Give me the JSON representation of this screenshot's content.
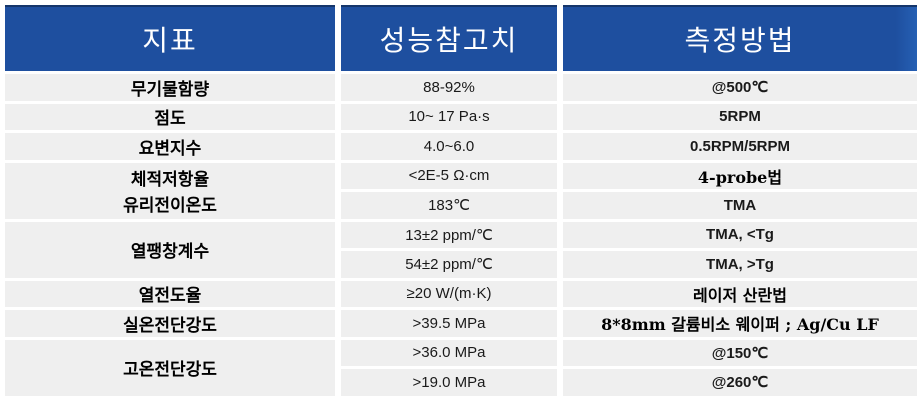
{
  "table": {
    "headers": [
      {
        "label": "지표"
      },
      {
        "label": "성능참고치"
      },
      {
        "label": "측정방법"
      }
    ],
    "rows": [
      {
        "indicator": "무기물함량",
        "value": "88-92%",
        "method": "@500℃"
      },
      {
        "indicator": "점도",
        "value": "10~ 17 Pa·s",
        "method": "5RPM"
      },
      {
        "indicator": "요변지수",
        "value": "4.0~6.0",
        "method": "0.5RPM/5RPM"
      },
      {
        "indicator": "체적저항율",
        "value": "<2E-5 Ω·cm",
        "method": "4-probe법"
      },
      {
        "indicator": "유리전이온도",
        "value": "183℃",
        "method": "TMA"
      },
      {
        "indicator": "열팽창계수",
        "values": [
          "13±2 ppm/℃",
          "54±2 ppm/℃"
        ],
        "methods": [
          "TMA, <Tg",
          "TMA, >Tg"
        ]
      },
      {
        "indicator": "열전도율",
        "value": "≥20 W/(m·K)",
        "method": "레이저 산란법"
      },
      {
        "indicator": "실온전단강도",
        "value": ">39.5 MPa",
        "method": "8*8mm 갈륨비소 웨이퍼 ; Ag/Cu LF"
      },
      {
        "indicator": "고온전단강도",
        "values": [
          ">36.0 MPa",
          ">19.0 MPa"
        ],
        "methods": [
          "@150℃",
          "@260℃"
        ]
      }
    ],
    "colors": {
      "header_bg": "#1E4F9F",
      "header_top_line": "#15366B",
      "header_text": "#FFFFFF",
      "row_bg": "#EFEFEF",
      "text": "#1A1A1A"
    }
  }
}
